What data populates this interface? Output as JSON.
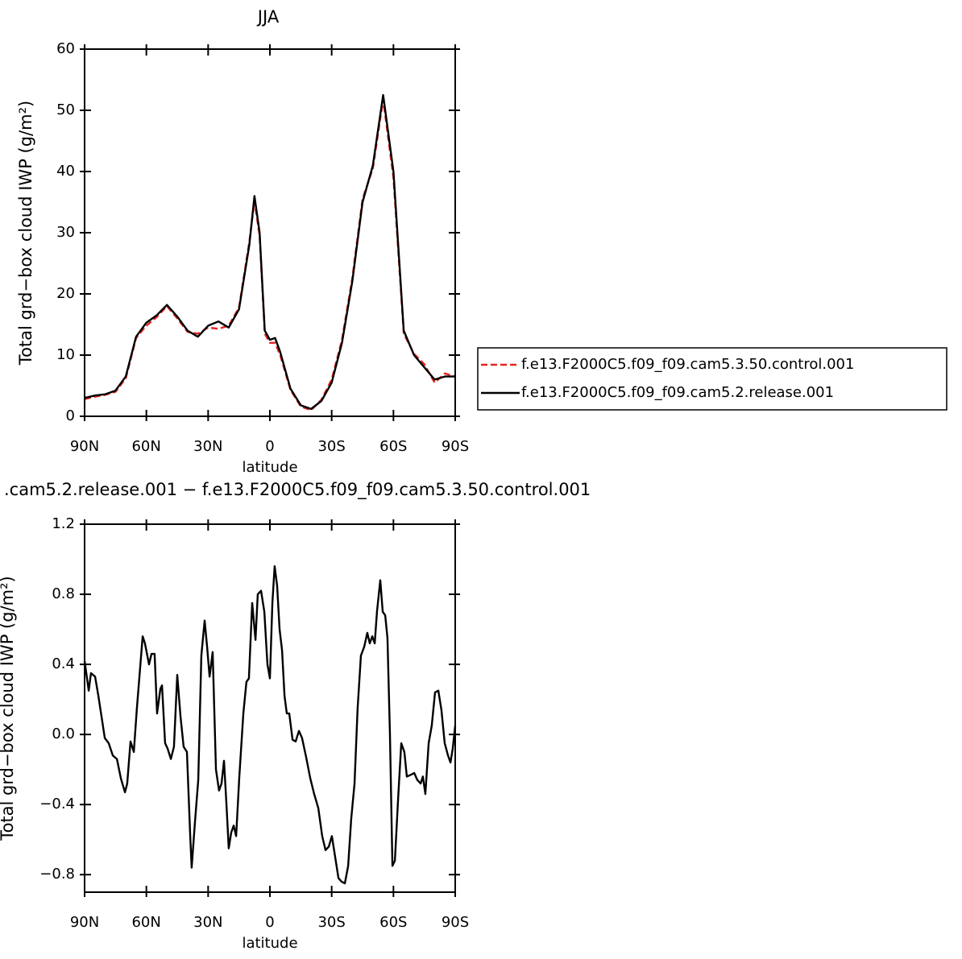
{
  "chart_data": [
    {
      "type": "line",
      "title": "JJA",
      "xlabel": "latitude",
      "ylabel": "Total grd−box cloud IWP (g/m²)",
      "x": [
        90,
        85,
        80,
        75,
        70,
        65,
        60,
        55,
        50,
        45,
        40,
        35,
        30,
        25,
        20,
        15,
        10,
        7.5,
        5,
        2.5,
        0,
        -2.5,
        -5,
        -10,
        -15,
        -20,
        -25,
        -30,
        -35,
        -40,
        -45,
        -50,
        -55,
        -60,
        -65,
        -70,
        -75,
        -80,
        -85,
        -90
      ],
      "series": [
        {
          "name": "f.e13.F2000C5.f09_f09.cam5.3.50.control.001",
          "color": "#e8251f",
          "linestyle": "dashed",
          "values": [
            2.8,
            3.2,
            3.5,
            4.0,
            6.2,
            12.8,
            14.8,
            16.2,
            18.0,
            16.0,
            13.8,
            13.5,
            14.5,
            14.3,
            14.8,
            17.8,
            28.5,
            35.2,
            29.5,
            13.5,
            12,
            12,
            10,
            4.3,
            1.6,
            1.0,
            2.7,
            6,
            12.5,
            22.5,
            35.5,
            40.5,
            51.8,
            39,
            13.5,
            10.2,
            8.5,
            5.5,
            7,
            6.5
          ]
        },
        {
          "name": "f.e13.F2000C5.f09_f09.cam5.2.release.001",
          "color": "#000000",
          "linestyle": "solid",
          "values": [
            3,
            3.4,
            3.6,
            4.2,
            6.5,
            13,
            15.3,
            16.5,
            18.2,
            16.3,
            14,
            13,
            14.8,
            15.5,
            14.5,
            17.5,
            28,
            36,
            30,
            14,
            12.5,
            12.8,
            10.5,
            4.5,
            1.8,
            1.2,
            2.5,
            5.5,
            12,
            22,
            35,
            41,
            52.5,
            40,
            14,
            10,
            8,
            6,
            6.5,
            6.5
          ]
        }
      ],
      "xlim": [
        90,
        -90
      ],
      "xticks": [
        {
          "value": 90,
          "label": "90N"
        },
        {
          "value": 60,
          "label": "60N"
        },
        {
          "value": 30,
          "label": "30N"
        },
        0,
        {
          "value": -30,
          "label": "30S"
        },
        {
          "value": -60,
          "label": "60S"
        },
        {
          "value": -90,
          "label": "90S"
        }
      ],
      "ylim": [
        0,
        60
      ],
      "yticks": [
        0,
        10,
        20,
        30,
        40,
        50,
        60
      ],
      "legend": "right"
    },
    {
      "type": "line",
      "title": ".cam5.2.release.001 − f.e13.F2000C5.f09_f09.cam5.3.50.control.001",
      "xlabel": "latitude",
      "ylabel": "Total grd−box cloud IWP (g/m²)",
      "x": [
        90,
        88.0,
        86.9,
        84.9,
        83.3,
        80.2,
        78.3,
        76.3,
        74.3,
        72.4,
        70.4,
        69.3,
        67.7,
        66.1,
        64.6,
        61.8,
        60.7,
        58.7,
        57.5,
        56.0,
        54.8,
        53.2,
        52.4,
        50.9,
        49.7,
        48.1,
        46.6,
        45.0,
        43.4,
        41.9,
        40.3,
        38.7,
        38.0,
        36.4,
        34.8,
        33.3,
        31.7,
        30.5,
        29.3,
        27.8,
        26.2,
        24.7,
        23.5,
        22.3,
        21.1,
        20.0,
        18.8,
        17.6,
        16.4,
        14.9,
        12.9,
        11.4,
        10.2,
        8.6,
        7.0,
        5.9,
        4.3,
        2.7,
        1.2,
        0.0,
        -1.2,
        -2.3,
        -3.5,
        -4.7,
        -5.9,
        -7.1,
        -8.2,
        -9.4,
        -11.0,
        -12.5,
        -14.1,
        -15.6,
        -17.6,
        -19.6,
        -21.5,
        -23.5,
        -25.4,
        -27.0,
        -28.6,
        -30.1,
        -31.7,
        -33.3,
        -34.8,
        -36.4,
        -38.0,
        -39.5,
        -41.1,
        -42.6,
        -44.2,
        -45.8,
        -47.3,
        -48.5,
        -49.7,
        -50.9,
        -52.0,
        -53.6,
        -54.8,
        -56.0,
        -57.1,
        -58.3,
        -59.5,
        -60.7,
        -62.3,
        -63.8,
        -65.3,
        -66.5,
        -68.5,
        -70.1,
        -71.6,
        -73.2,
        -74.3,
        -75.5,
        -77.1,
        -78.6,
        -80.2,
        -81.8,
        -83.3,
        -84.9,
        -86.5,
        -87.7,
        -88.8,
        -90
      ],
      "series": [
        {
          "color": "#000000",
          "linestyle": "solid",
          "values": [
            0.42,
            0.25,
            0.35,
            0.33,
            0.22,
            -0.02,
            -0.05,
            -0.12,
            -0.14,
            -0.25,
            -0.33,
            -0.28,
            -0.04,
            -0.1,
            0.15,
            0.56,
            0.52,
            0.4,
            0.46,
            0.46,
            0.12,
            0.26,
            0.28,
            -0.05,
            -0.08,
            -0.14,
            -0.07,
            0.34,
            0.1,
            -0.07,
            -0.1,
            -0.58,
            -0.76,
            -0.5,
            -0.26,
            0.45,
            0.65,
            0.5,
            0.33,
            0.47,
            -0.2,
            -0.32,
            -0.28,
            -0.15,
            -0.4,
            -0.65,
            -0.56,
            -0.52,
            -0.58,
            -0.25,
            0.12,
            0.3,
            0.32,
            0.75,
            0.54,
            0.8,
            0.82,
            0.7,
            0.4,
            0.32,
            0.75,
            0.96,
            0.85,
            0.6,
            0.48,
            0.22,
            0.12,
            0.12,
            -0.03,
            -0.04,
            0.02,
            -0.02,
            -0.13,
            -0.25,
            -0.34,
            -0.42,
            -0.58,
            -0.66,
            -0.64,
            -0.58,
            -0.7,
            -0.82,
            -0.84,
            -0.85,
            -0.75,
            -0.48,
            -0.28,
            0.15,
            0.45,
            0.5,
            0.58,
            0.52,
            0.56,
            0.52,
            0.7,
            0.88,
            0.7,
            0.68,
            0.55,
            0.0,
            -0.75,
            -0.72,
            -0.36,
            -0.05,
            -0.1,
            -0.24,
            -0.23,
            -0.22,
            -0.26,
            -0.28,
            -0.24,
            -0.34,
            -0.05,
            0.05,
            0.24,
            0.25,
            0.14,
            -0.05,
            -0.12,
            -0.16,
            -0.08,
            0.05
          ]
        }
      ],
      "xlim": [
        90,
        -90
      ],
      "xticks": [
        {
          "value": 90,
          "label": "90N"
        },
        {
          "value": 60,
          "label": "60N"
        },
        {
          "value": 30,
          "label": "30N"
        },
        0,
        {
          "value": -30,
          "label": "30S"
        },
        {
          "value": -60,
          "label": "60S"
        },
        {
          "value": -90,
          "label": "90S"
        }
      ],
      "ylim": [
        -0.9,
        1.2
      ],
      "yticks": [
        {
          "value": -0.8,
          "label": "−0.8"
        },
        {
          "value": -0.4,
          "label": "−0.4"
        },
        {
          "value": 0,
          "label": "0.0"
        },
        0.4,
        0.8,
        1.2
      ]
    }
  ]
}
